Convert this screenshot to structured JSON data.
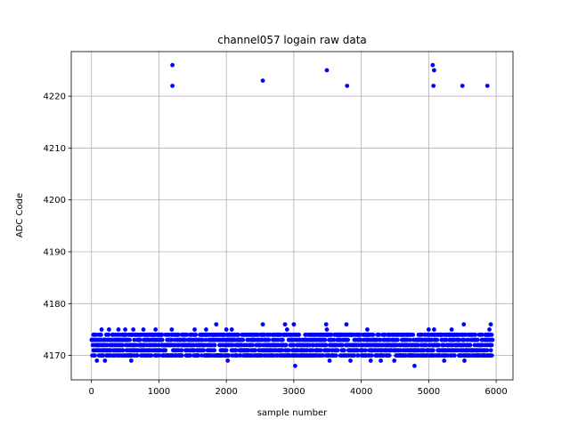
{
  "chart_data": {
    "type": "scatter",
    "title": "channel057 logain raw data",
    "xlabel": "sample number",
    "ylabel": "ADC Code",
    "xlim": [
      -300,
      6250
    ],
    "ylim": [
      4165.3,
      4228.6
    ],
    "xticks": [
      0,
      1000,
      2000,
      3000,
      4000,
      5000,
      6000
    ],
    "yticks": [
      4170,
      4180,
      4190,
      4200,
      4210,
      4220
    ],
    "grid": true,
    "marker_color": "#0000ff",
    "x_range": [
      0,
      5940
    ],
    "dense_band": [
      4170,
      4174
    ],
    "outliers": [
      {
        "x": 1200,
        "y": 4226
      },
      {
        "x": 1200,
        "y": 4222
      },
      {
        "x": 2540,
        "y": 4223
      },
      {
        "x": 3490,
        "y": 4225
      },
      {
        "x": 3790,
        "y": 4222
      },
      {
        "x": 5060,
        "y": 4226
      },
      {
        "x": 5080,
        "y": 4225
      },
      {
        "x": 5070,
        "y": 4222
      },
      {
        "x": 5500,
        "y": 4222
      },
      {
        "x": 5870,
        "y": 4222
      },
      {
        "x": 80,
        "y": 4169
      },
      {
        "x": 200,
        "y": 4169
      },
      {
        "x": 590,
        "y": 4169
      },
      {
        "x": 2020,
        "y": 4169
      },
      {
        "x": 3020,
        "y": 4168
      },
      {
        "x": 3530,
        "y": 4169
      },
      {
        "x": 3840,
        "y": 4169
      },
      {
        "x": 4140,
        "y": 4169
      },
      {
        "x": 4290,
        "y": 4169
      },
      {
        "x": 4490,
        "y": 4169
      },
      {
        "x": 4790,
        "y": 4168
      },
      {
        "x": 5230,
        "y": 4169
      },
      {
        "x": 5530,
        "y": 4169
      },
      {
        "x": 150,
        "y": 4175
      },
      {
        "x": 260,
        "y": 4175
      },
      {
        "x": 400,
        "y": 4175
      },
      {
        "x": 500,
        "y": 4175
      },
      {
        "x": 620,
        "y": 4175
      },
      {
        "x": 770,
        "y": 4175
      },
      {
        "x": 950,
        "y": 4175
      },
      {
        "x": 1190,
        "y": 4175
      },
      {
        "x": 1530,
        "y": 4175
      },
      {
        "x": 1700,
        "y": 4175
      },
      {
        "x": 1850,
        "y": 4176
      },
      {
        "x": 2000,
        "y": 4175
      },
      {
        "x": 2080,
        "y": 4175
      },
      {
        "x": 2540,
        "y": 4176
      },
      {
        "x": 2870,
        "y": 4176
      },
      {
        "x": 2900,
        "y": 4175
      },
      {
        "x": 3000,
        "y": 4176
      },
      {
        "x": 3480,
        "y": 4176
      },
      {
        "x": 3490,
        "y": 4175
      },
      {
        "x": 3780,
        "y": 4176
      },
      {
        "x": 4090,
        "y": 4175
      },
      {
        "x": 5000,
        "y": 4175
      },
      {
        "x": 5080,
        "y": 4175
      },
      {
        "x": 5340,
        "y": 4175
      },
      {
        "x": 5520,
        "y": 4176
      },
      {
        "x": 5920,
        "y": 4176
      },
      {
        "x": 5900,
        "y": 4175
      }
    ]
  }
}
